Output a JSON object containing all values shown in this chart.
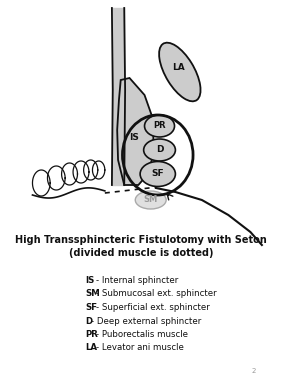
{
  "title_line1": "High Transsphincteric Fistulotomy with Seton",
  "title_line2": "(divided muscle is dotted)",
  "legend_items": [
    [
      "IS",
      "- Internal sphincter"
    ],
    [
      "SM",
      "- Submucosal ext. sphincter"
    ],
    [
      "SF",
      "- Superficial ext. sphincter"
    ],
    [
      "D",
      "- Deep external sphincter"
    ],
    [
      "PR",
      "- Puborectalis muscle"
    ],
    [
      "LA",
      "- Levator ani muscle"
    ]
  ],
  "bg_color": "#ffffff",
  "anatomy_fill": "#cccccc",
  "sm_fill": "#dddddd",
  "edge_color": "#111111",
  "label_color": "#111111",
  "light_label_color": "#999999"
}
